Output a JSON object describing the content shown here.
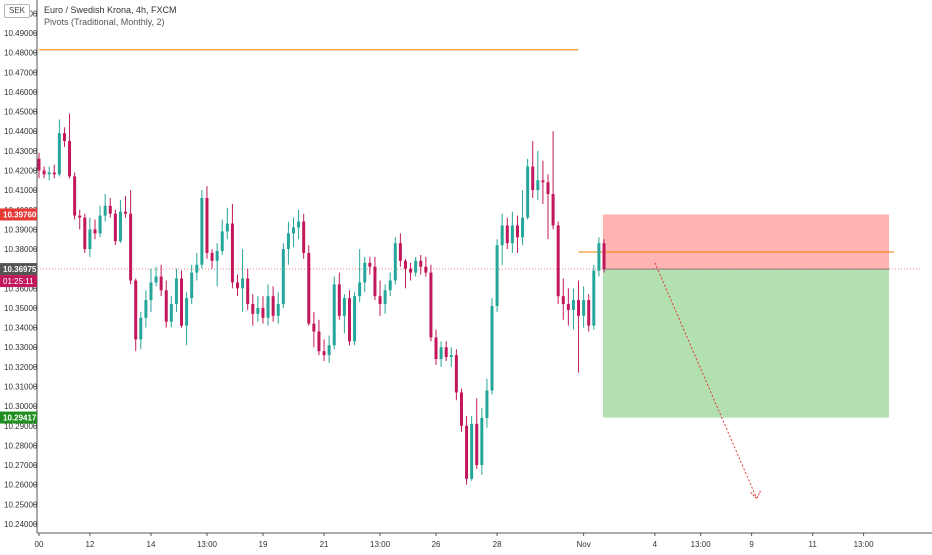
{
  "header": {
    "currency_badge": "SEK",
    "title": "Euro / Swedish Krona, 4h, FXCM",
    "indicator": "Pivots (Traditional, Monthly, 2)"
  },
  "price_tags": {
    "stop_loss": "10.39760",
    "current_price": "10.36975",
    "countdown": "01:25:11",
    "take_profit": "10.29417"
  },
  "colors": {
    "bull": "#26a69a",
    "bear": "#c2185b",
    "pivot_line": "#f57c00",
    "loss_zone": "#ffb3b3",
    "profit_zone": "#b2e0b0",
    "current_tag": "#555555",
    "loss_tag": "#e53935",
    "profit_tag": "#1e8e1e"
  },
  "chart_data": {
    "type": "candlestick",
    "title": "Euro / Swedish Krona, 4h, FXCM",
    "ylim": [
      10.235,
      10.505
    ],
    "y_ticks": [
      "10.50000",
      "10.49000",
      "10.48000",
      "10.47000",
      "10.46000",
      "10.45000",
      "10.44000",
      "10.43000",
      "10.42000",
      "10.41000",
      "10.40000",
      "10.39000",
      "10.38000",
      "10.37000",
      "10.36000",
      "10.35000",
      "10.34000",
      "10.33000",
      "10.32000",
      "10.31000",
      "10.30000",
      "10.29000",
      "10.28000",
      "10.27000",
      "10.26000",
      "10.25000",
      "10.24000"
    ],
    "x_ticks": [
      {
        "label": "00",
        "bar": 0
      },
      {
        "label": "12",
        "bar": 10
      },
      {
        "label": "14",
        "bar": 22
      },
      {
        "label": "13:00",
        "bar": 33
      },
      {
        "label": "19",
        "bar": 44
      },
      {
        "label": "21",
        "bar": 56
      },
      {
        "label": "13:00",
        "bar": 67
      },
      {
        "label": "26",
        "bar": 78
      },
      {
        "label": "28",
        "bar": 90
      },
      {
        "label": "Nov",
        "bar": 107
      },
      {
        "label": "4",
        "bar": 121
      },
      {
        "label": "13:00",
        "bar": 130
      },
      {
        "label": "9",
        "bar": 140
      },
      {
        "label": "11",
        "bar": 152
      },
      {
        "label": "13:00",
        "bar": 162
      }
    ],
    "candles": [
      [
        10.426,
        10.429,
        10.416,
        10.42
      ],
      [
        10.42,
        10.422,
        10.416,
        10.418
      ],
      [
        10.418,
        10.422,
        10.415,
        10.419
      ],
      [
        10.419,
        10.423,
        10.416,
        10.418
      ],
      [
        10.418,
        10.446,
        10.417,
        10.439
      ],
      [
        10.439,
        10.442,
        10.432,
        10.435
      ],
      [
        10.435,
        10.449,
        10.416,
        10.417
      ],
      [
        10.417,
        10.419,
        10.395,
        10.397
      ],
      [
        10.397,
        10.4,
        10.39,
        10.396
      ],
      [
        10.396,
        10.398,
        10.378,
        10.38
      ],
      [
        10.38,
        10.396,
        10.376,
        10.39
      ],
      [
        10.39,
        10.395,
        10.385,
        10.388
      ],
      [
        10.388,
        10.402,
        10.386,
        10.397
      ],
      [
        10.397,
        10.408,
        10.394,
        10.402
      ],
      [
        10.402,
        10.406,
        10.396,
        10.398
      ],
      [
        10.398,
        10.4,
        10.382,
        10.384
      ],
      [
        10.384,
        10.405,
        10.383,
        10.399
      ],
      [
        10.399,
        10.407,
        10.396,
        10.398
      ],
      [
        10.398,
        10.41,
        10.362,
        10.364
      ],
      [
        10.364,
        10.365,
        10.328,
        10.334
      ],
      [
        10.334,
        10.348,
        10.329,
        10.345
      ],
      [
        10.345,
        10.359,
        10.34,
        10.354
      ],
      [
        10.354,
        10.37,
        10.348,
        10.363
      ],
      [
        10.363,
        10.371,
        10.361,
        10.366
      ],
      [
        10.366,
        10.372,
        10.356,
        10.359
      ],
      [
        10.359,
        10.364,
        10.34,
        10.343
      ],
      [
        10.343,
        10.356,
        10.34,
        10.352
      ],
      [
        10.352,
        10.37,
        10.348,
        10.365
      ],
      [
        10.365,
        10.369,
        10.34,
        10.341
      ],
      [
        10.341,
        10.358,
        10.331,
        10.355
      ],
      [
        10.355,
        10.372,
        10.352,
        10.368
      ],
      [
        10.368,
        10.378,
        10.364,
        10.372
      ],
      [
        10.372,
        10.41,
        10.37,
        10.406
      ],
      [
        10.406,
        10.412,
        10.375,
        10.378
      ],
      [
        10.378,
        10.38,
        10.37,
        10.374
      ],
      [
        10.374,
        10.383,
        10.361,
        10.379
      ],
      [
        10.379,
        10.395,
        10.377,
        10.389
      ],
      [
        10.389,
        10.401,
        10.385,
        10.393
      ],
      [
        10.393,
        10.403,
        10.36,
        10.363
      ],
      [
        10.363,
        10.367,
        10.356,
        10.36
      ],
      [
        10.36,
        10.38,
        10.348,
        10.365
      ],
      [
        10.365,
        10.37,
        10.349,
        10.352
      ],
      [
        10.352,
        10.357,
        10.341,
        10.347
      ],
      [
        10.347,
        10.356,
        10.343,
        10.35
      ],
      [
        10.35,
        10.356,
        10.342,
        10.345
      ],
      [
        10.345,
        10.362,
        10.341,
        10.356
      ],
      [
        10.356,
        10.361,
        10.343,
        10.346
      ],
      [
        10.346,
        10.358,
        10.342,
        10.352
      ],
      [
        10.352,
        10.383,
        10.35,
        10.38
      ],
      [
        10.38,
        10.394,
        10.372,
        10.388
      ],
      [
        10.388,
        10.396,
        10.381,
        10.391
      ],
      [
        10.391,
        10.4,
        10.385,
        10.394
      ],
      [
        10.394,
        10.398,
        10.375,
        10.378
      ],
      [
        10.378,
        10.382,
        10.341,
        10.342
      ],
      [
        10.342,
        10.348,
        10.33,
        10.338
      ],
      [
        10.338,
        10.344,
        10.326,
        10.328
      ],
      [
        10.328,
        10.334,
        10.323,
        10.326
      ],
      [
        10.326,
        10.336,
        10.322,
        10.331
      ],
      [
        10.331,
        10.366,
        10.329,
        10.362
      ],
      [
        10.362,
        10.368,
        10.344,
        10.346
      ],
      [
        10.346,
        10.357,
        10.337,
        10.355
      ],
      [
        10.355,
        10.359,
        10.331,
        10.333
      ],
      [
        10.333,
        10.358,
        10.331,
        10.356
      ],
      [
        10.356,
        10.38,
        10.353,
        10.363
      ],
      [
        10.363,
        10.376,
        10.358,
        10.373
      ],
      [
        10.373,
        10.376,
        10.367,
        10.371
      ],
      [
        10.371,
        10.376,
        10.354,
        10.356
      ],
      [
        10.356,
        10.364,
        10.346,
        10.352
      ],
      [
        10.352,
        10.362,
        10.347,
        10.359
      ],
      [
        10.359,
        10.368,
        10.356,
        10.364
      ],
      [
        10.364,
        10.386,
        10.362,
        10.383
      ],
      [
        10.383,
        10.388,
        10.371,
        10.374
      ],
      [
        10.374,
        10.375,
        10.36,
        10.37
      ],
      [
        10.37,
        10.373,
        10.364,
        10.368
      ],
      [
        10.368,
        10.376,
        10.366,
        10.374
      ],
      [
        10.374,
        10.377,
        10.367,
        10.371
      ],
      [
        10.371,
        10.376,
        10.366,
        10.368
      ],
      [
        10.368,
        10.372,
        10.333,
        10.335
      ],
      [
        10.335,
        10.339,
        10.321,
        10.324
      ],
      [
        10.324,
        10.333,
        10.32,
        10.33
      ],
      [
        10.33,
        10.333,
        10.323,
        10.325
      ],
      [
        10.325,
        10.33,
        10.32,
        10.326
      ],
      [
        10.326,
        10.329,
        10.303,
        10.307
      ],
      [
        10.307,
        10.309,
        10.287,
        10.29
      ],
      [
        10.29,
        10.295,
        10.26,
        10.263
      ],
      [
        10.263,
        10.295,
        10.262,
        10.291
      ],
      [
        10.291,
        10.304,
        10.268,
        10.27
      ],
      [
        10.27,
        10.299,
        10.265,
        10.294
      ],
      [
        10.294,
        10.314,
        10.289,
        10.308
      ],
      [
        10.308,
        10.355,
        10.306,
        10.351
      ],
      [
        10.351,
        10.385,
        10.348,
        10.382
      ],
      [
        10.382,
        10.398,
        10.372,
        10.392
      ],
      [
        10.392,
        10.396,
        10.38,
        10.383
      ],
      [
        10.383,
        10.399,
        10.378,
        10.392
      ],
      [
        10.392,
        10.397,
        10.378,
        10.386
      ],
      [
        10.386,
        10.41,
        10.382,
        10.396
      ],
      [
        10.396,
        10.426,
        10.395,
        10.422
      ],
      [
        10.422,
        10.435,
        10.406,
        10.41
      ],
      [
        10.41,
        10.43,
        10.405,
        10.415
      ],
      [
        10.415,
        10.425,
        10.403,
        10.414
      ],
      [
        10.414,
        10.418,
        10.385,
        10.408
      ],
      [
        10.408,
        10.44,
        10.39,
        10.392
      ],
      [
        10.392,
        10.394,
        10.352,
        10.356
      ],
      [
        10.356,
        10.365,
        10.344,
        10.352
      ],
      [
        10.352,
        10.36,
        10.341,
        10.349
      ],
      [
        10.349,
        10.36,
        10.339,
        10.354
      ],
      [
        10.354,
        10.364,
        10.317,
        10.346
      ],
      [
        10.346,
        10.361,
        10.34,
        10.354
      ],
      [
        10.354,
        10.357,
        10.338,
        10.341
      ],
      [
        10.341,
        10.372,
        10.339,
        10.369
      ],
      [
        10.369,
        10.386,
        10.366,
        10.383
      ],
      [
        10.383,
        10.385,
        10.368,
        10.3698
      ]
    ],
    "pivot_lines": [
      {
        "value": 10.4815,
        "from_bar": 0,
        "to_bar": 106
      },
      {
        "value": 10.3785,
        "from_bar": 106,
        "to_bar": 168
      }
    ],
    "position": {
      "type": "short",
      "entry": 10.3698,
      "stop_loss": 10.3976,
      "take_profit": 10.2942,
      "from_bar": 111,
      "to_bar": 167
    },
    "projection": {
      "from": [
        121,
        10.373
      ],
      "to": [
        141,
        10.253
      ]
    },
    "grid": false
  }
}
